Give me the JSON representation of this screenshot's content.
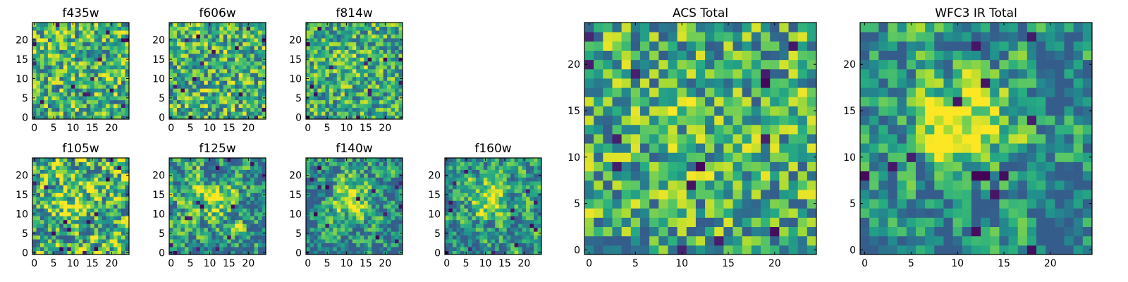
{
  "figure": {
    "background": "#ffffff"
  },
  "chart_data": [
    {
      "id": "f435w",
      "type": "heatmap",
      "title": "f435w",
      "size": 25,
      "xticks": [
        0,
        5,
        10,
        15,
        20
      ],
      "yticks": [
        0,
        5,
        10,
        15,
        20
      ],
      "xlim": [
        0,
        25
      ],
      "ylim": [
        0,
        25
      ],
      "colormap": "viridis",
      "seed": 11,
      "smooth": 0,
      "blob": 0.0,
      "contrast": 1.0
    },
    {
      "id": "f606w",
      "type": "heatmap",
      "title": "f606w",
      "size": 25,
      "xticks": [
        0,
        5,
        10,
        15,
        20
      ],
      "yticks": [
        0,
        5,
        10,
        15,
        20
      ],
      "xlim": [
        0,
        25
      ],
      "ylim": [
        0,
        25
      ],
      "colormap": "viridis",
      "seed": 23,
      "smooth": 0,
      "blob": 0.0,
      "contrast": 1.0
    },
    {
      "id": "f814w",
      "type": "heatmap",
      "title": "f814w",
      "size": 25,
      "xticks": [
        0,
        5,
        10,
        15,
        20
      ],
      "yticks": [
        0,
        5,
        10,
        15,
        20
      ],
      "xlim": [
        0,
        25
      ],
      "ylim": [
        0,
        25
      ],
      "colormap": "viridis",
      "seed": 37,
      "smooth": 0,
      "blob": 0.15,
      "contrast": 1.0
    },
    {
      "id": "f105w",
      "type": "heatmap",
      "title": "f105w",
      "size": 25,
      "xticks": [
        0,
        5,
        10,
        15,
        20
      ],
      "yticks": [
        0,
        5,
        10,
        15,
        20
      ],
      "xlim": [
        0,
        25
      ],
      "ylim": [
        0,
        25
      ],
      "colormap": "viridis",
      "seed": 41,
      "smooth": 1,
      "blob": 0.2,
      "contrast": 1.6
    },
    {
      "id": "f125w",
      "type": "heatmap",
      "title": "f125w",
      "size": 25,
      "xticks": [
        0,
        5,
        10,
        15,
        20
      ],
      "yticks": [
        0,
        5,
        10,
        15,
        20
      ],
      "xlim": [
        0,
        25
      ],
      "ylim": [
        0,
        25
      ],
      "colormap": "viridis",
      "seed": 53,
      "smooth": 1,
      "blob": 0.25,
      "contrast": 1.6
    },
    {
      "id": "f140w",
      "type": "heatmap",
      "title": "f140w",
      "size": 25,
      "xticks": [
        0,
        5,
        10,
        15,
        20
      ],
      "yticks": [
        0,
        5,
        10,
        15,
        20
      ],
      "xlim": [
        0,
        25
      ],
      "ylim": [
        0,
        25
      ],
      "colormap": "viridis",
      "seed": 67,
      "smooth": 1,
      "blob": 0.45,
      "contrast": 1.6
    },
    {
      "id": "f160w",
      "type": "heatmap",
      "title": "f160w",
      "size": 25,
      "xticks": [
        0,
        5,
        10,
        15,
        20
      ],
      "yticks": [
        0,
        5,
        10,
        15,
        20
      ],
      "xlim": [
        0,
        25
      ],
      "ylim": [
        0,
        25
      ],
      "colormap": "viridis",
      "seed": 79,
      "smooth": 1,
      "blob": 0.4,
      "contrast": 1.6
    },
    {
      "id": "acs-total",
      "type": "heatmap",
      "title": "ACS Total",
      "size": 25,
      "xticks": [
        0,
        5,
        10,
        15,
        20
      ],
      "yticks": [
        0,
        5,
        10,
        15,
        20
      ],
      "xlim": [
        0,
        25
      ],
      "ylim": [
        0,
        25
      ],
      "colormap": "viridis",
      "seed": 97,
      "smooth": 0,
      "blob": 0.1,
      "contrast": 1.1
    },
    {
      "id": "wfc3-ir-total",
      "type": "heatmap",
      "title": "WFC3 IR Total",
      "size": 25,
      "xticks": [
        0,
        5,
        10,
        15,
        20
      ],
      "yticks": [
        0,
        5,
        10,
        15,
        20
      ],
      "xlim": [
        0,
        25
      ],
      "ylim": [
        0,
        25
      ],
      "colormap": "viridis",
      "seed": 131,
      "smooth": 1,
      "blob": 0.55,
      "contrast": 1.8
    }
  ]
}
